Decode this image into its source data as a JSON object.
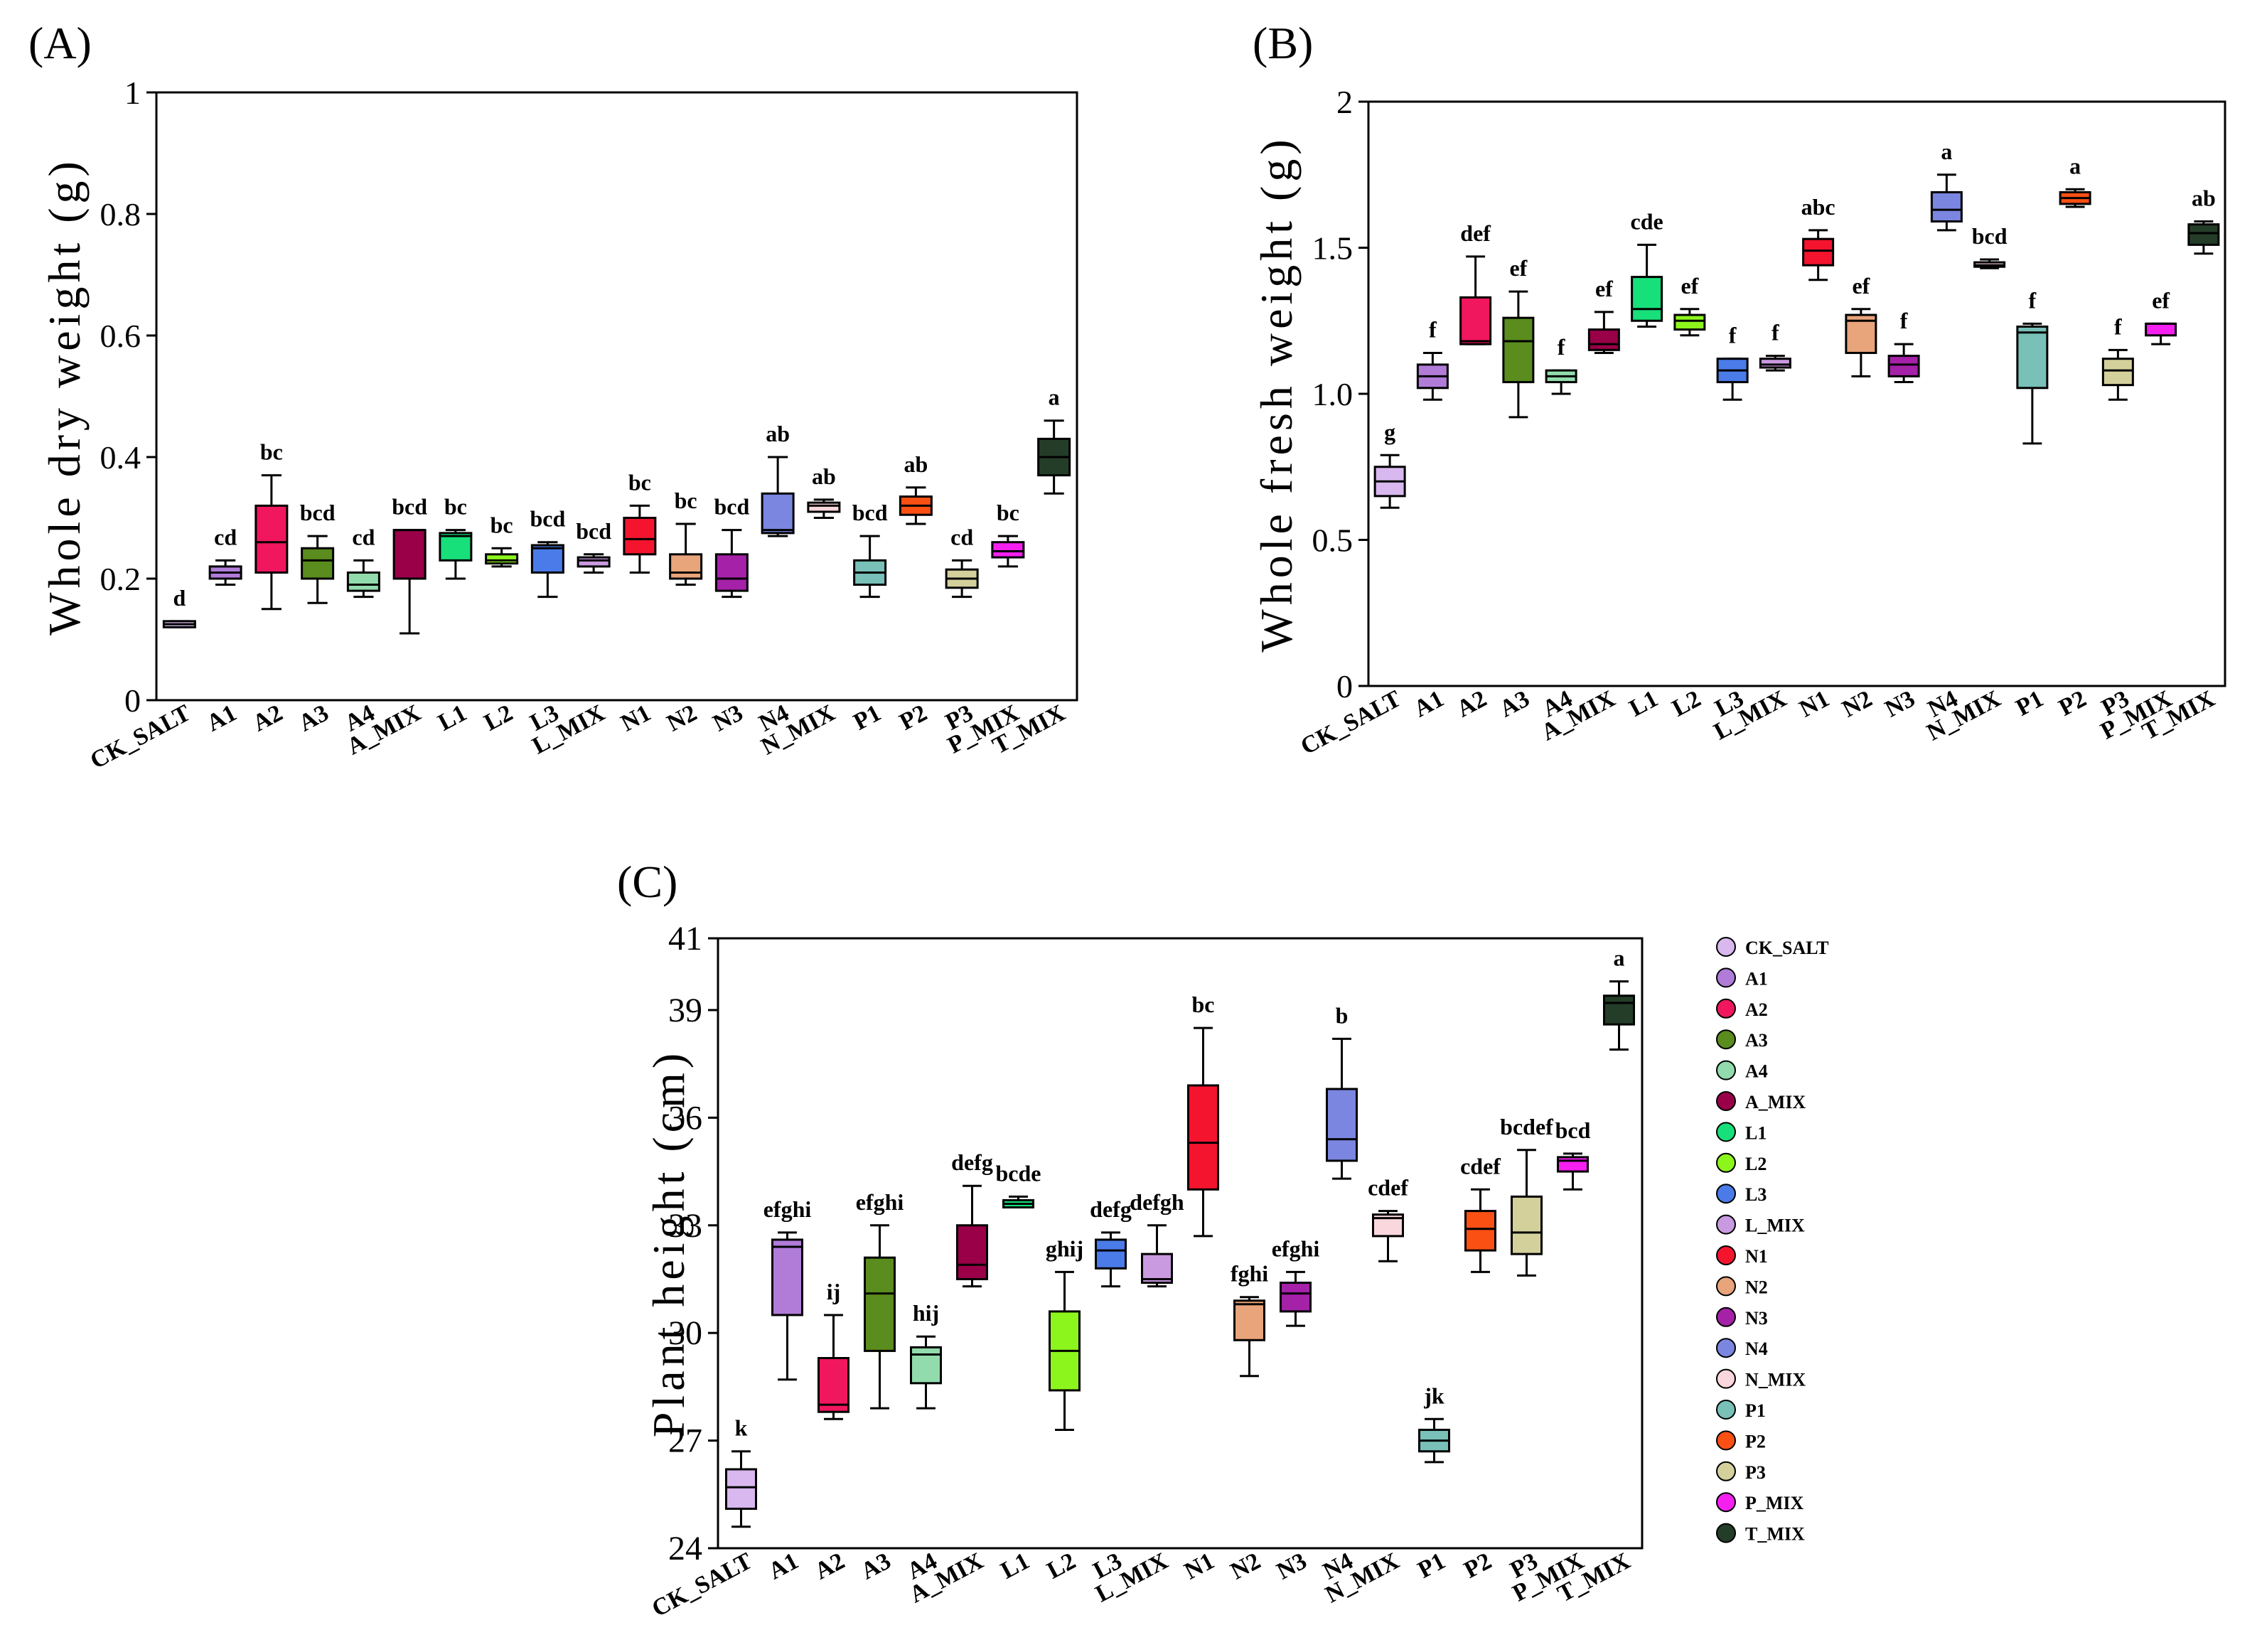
{
  "categories": [
    "CK_SALT",
    "A1",
    "A2",
    "A3",
    "A4",
    "A_MIX",
    "L1",
    "L2",
    "L3",
    "L_MIX",
    "N1",
    "N2",
    "N3",
    "N4",
    "N_MIX",
    "P1",
    "P2",
    "P3",
    "P_MIX",
    "T_MIX"
  ],
  "colors": [
    "#d8b8ee",
    "#b07cd8",
    "#f0175e",
    "#5a8c1e",
    "#92dbac",
    "#990048",
    "#17e07a",
    "#8cf51c",
    "#4a7be8",
    "#c99ae0",
    "#f5142e",
    "#e8a47a",
    "#a521a8",
    "#7a86e0",
    "#fad7dc",
    "#78c0b8",
    "#fa5014",
    "#d4d09c",
    "#f520f0",
    "#243d28"
  ],
  "legend": {
    "entries": [
      "CK_SALT",
      "A1",
      "A2",
      "A3",
      "A4",
      "A_MIX",
      "L1",
      "L2",
      "L3",
      "L_MIX",
      "N1",
      "N2",
      "N3",
      "N4",
      "N_MIX",
      "P1",
      "P2",
      "P3",
      "P_MIX",
      "T_MIX"
    ]
  },
  "chart_data": [
    {
      "type": "box",
      "panel": "(A)",
      "ylabel": "Whole dry weight (g)",
      "ylim": [
        0,
        1
      ],
      "yticks": [
        "0",
        "0.2",
        "0.4",
        "0.6",
        "0.8",
        "1"
      ],
      "tick_values": [
        0,
        0.2,
        0.4,
        0.6,
        0.8,
        1
      ],
      "letters": [
        "d",
        "cd",
        "bc",
        "bcd",
        "cd",
        "bcd",
        "bc",
        "bc",
        "bcd",
        "bcd",
        "bc",
        "bc",
        "bcd",
        "ab",
        "ab",
        "bcd",
        "ab",
        "cd",
        "bc",
        "a"
      ],
      "boxes": [
        {
          "min": 0.12,
          "q1": 0.12,
          "median": 0.125,
          "q3": 0.13,
          "max": 0.13
        },
        {
          "min": 0.19,
          "q1": 0.2,
          "median": 0.21,
          "q3": 0.22,
          "max": 0.23
        },
        {
          "min": 0.15,
          "q1": 0.21,
          "median": 0.26,
          "q3": 0.32,
          "max": 0.37
        },
        {
          "min": 0.16,
          "q1": 0.2,
          "median": 0.23,
          "q3": 0.25,
          "max": 0.27
        },
        {
          "min": 0.17,
          "q1": 0.18,
          "median": 0.19,
          "q3": 0.21,
          "max": 0.23
        },
        {
          "min": 0.11,
          "q1": 0.2,
          "median": 0.28,
          "q3": 0.28,
          "max": 0.28
        },
        {
          "min": 0.2,
          "q1": 0.23,
          "median": 0.27,
          "q3": 0.275,
          "max": 0.28
        },
        {
          "min": 0.22,
          "q1": 0.225,
          "median": 0.23,
          "q3": 0.24,
          "max": 0.25
        },
        {
          "min": 0.17,
          "q1": 0.21,
          "median": 0.25,
          "q3": 0.255,
          "max": 0.26
        },
        {
          "min": 0.21,
          "q1": 0.22,
          "median": 0.23,
          "q3": 0.235,
          "max": 0.24
        },
        {
          "min": 0.21,
          "q1": 0.24,
          "median": 0.265,
          "q3": 0.3,
          "max": 0.32
        },
        {
          "min": 0.19,
          "q1": 0.2,
          "median": 0.21,
          "q3": 0.24,
          "max": 0.29
        },
        {
          "min": 0.17,
          "q1": 0.18,
          "median": 0.2,
          "q3": 0.24,
          "max": 0.28
        },
        {
          "min": 0.27,
          "q1": 0.275,
          "median": 0.28,
          "q3": 0.34,
          "max": 0.4
        },
        {
          "min": 0.3,
          "q1": 0.31,
          "median": 0.32,
          "q3": 0.325,
          "max": 0.33
        },
        {
          "min": 0.17,
          "q1": 0.19,
          "median": 0.21,
          "q3": 0.23,
          "max": 0.27
        },
        {
          "min": 0.29,
          "q1": 0.305,
          "median": 0.32,
          "q3": 0.335,
          "max": 0.35
        },
        {
          "min": 0.17,
          "q1": 0.185,
          "median": 0.2,
          "q3": 0.215,
          "max": 0.23
        },
        {
          "min": 0.22,
          "q1": 0.235,
          "median": 0.245,
          "q3": 0.26,
          "max": 0.27
        },
        {
          "min": 0.34,
          "q1": 0.37,
          "median": 0.4,
          "q3": 0.43,
          "max": 0.46
        }
      ]
    },
    {
      "type": "box",
      "panel": "(B)",
      "ylabel": "Whole fresh weight (g)",
      "ylim": [
        0,
        2
      ],
      "yticks": [
        "0",
        "0.5",
        "1.0",
        "1.5",
        "2"
      ],
      "tick_values": [
        0,
        0.5,
        1.0,
        1.5,
        2
      ],
      "letters": [
        "g",
        "f",
        "def",
        "ef",
        "f",
        "ef",
        "cde",
        "ef",
        "f",
        "f",
        "abc",
        "ef",
        "f",
        "a",
        "bcd",
        "f",
        "a",
        "f",
        "ef",
        "ab"
      ],
      "boxes": [
        {
          "min": 0.61,
          "q1": 0.65,
          "median": 0.7,
          "q3": 0.75,
          "max": 0.79
        },
        {
          "min": 0.98,
          "q1": 1.02,
          "median": 1.06,
          "q3": 1.1,
          "max": 1.14
        },
        {
          "min": 1.17,
          "q1": 1.17,
          "median": 1.18,
          "q3": 1.33,
          "max": 1.47
        },
        {
          "min": 0.92,
          "q1": 1.04,
          "median": 1.18,
          "q3": 1.26,
          "max": 1.35
        },
        {
          "min": 1.0,
          "q1": 1.04,
          "median": 1.06,
          "q3": 1.08,
          "max": 1.08
        },
        {
          "min": 1.14,
          "q1": 1.15,
          "median": 1.17,
          "q3": 1.22,
          "max": 1.28
        },
        {
          "min": 1.23,
          "q1": 1.25,
          "median": 1.29,
          "q3": 1.4,
          "max": 1.51
        },
        {
          "min": 1.2,
          "q1": 1.22,
          "median": 1.25,
          "q3": 1.27,
          "max": 1.29
        },
        {
          "min": 0.98,
          "q1": 1.04,
          "median": 1.08,
          "q3": 1.12,
          "max": 1.12
        },
        {
          "min": 1.08,
          "q1": 1.09,
          "median": 1.1,
          "q3": 1.12,
          "max": 1.13
        },
        {
          "min": 1.39,
          "q1": 1.44,
          "median": 1.49,
          "q3": 1.53,
          "max": 1.56
        },
        {
          "min": 1.06,
          "q1": 1.14,
          "median": 1.25,
          "q3": 1.27,
          "max": 1.29
        },
        {
          "min": 1.04,
          "q1": 1.06,
          "median": 1.1,
          "q3": 1.13,
          "max": 1.17
        },
        {
          "min": 1.56,
          "q1": 1.59,
          "median": 1.63,
          "q3": 1.69,
          "max": 1.75
        },
        {
          "min": 1.43,
          "q1": 1.435,
          "median": 1.44,
          "q3": 1.45,
          "max": 1.46
        },
        {
          "min": 0.83,
          "q1": 1.02,
          "median": 1.21,
          "q3": 1.23,
          "max": 1.24
        },
        {
          "min": 1.64,
          "q1": 1.65,
          "median": 1.67,
          "q3": 1.69,
          "max": 1.7
        },
        {
          "min": 0.98,
          "q1": 1.03,
          "median": 1.08,
          "q3": 1.12,
          "max": 1.15
        },
        {
          "min": 1.17,
          "q1": 1.2,
          "median": 1.24,
          "q3": 1.24,
          "max": 1.24
        },
        {
          "min": 1.48,
          "q1": 1.51,
          "median": 1.55,
          "q3": 1.58,
          "max": 1.59
        }
      ]
    },
    {
      "type": "box",
      "panel": "(C)",
      "ylabel": "Plant height (cm)",
      "ylim": [
        24,
        41
      ],
      "yticks": [
        "24",
        "27",
        "30",
        "33",
        "36",
        "39",
        "41"
      ],
      "tick_values": [
        24,
        27,
        30,
        33,
        36,
        39,
        41
      ],
      "letters": [
        "k",
        "efghi",
        "ij",
        "efghi",
        "hij",
        "defg",
        "bcde",
        "ghij",
        "defg",
        "defgh",
        "bc",
        "fghi",
        "efghi",
        "b",
        "cdef",
        "jk",
        "cdef",
        "bcdef",
        "bcd",
        "a"
      ],
      "boxes": [
        {
          "min": 24.6,
          "q1": 25.1,
          "median": 25.7,
          "q3": 26.2,
          "max": 26.7
        },
        {
          "min": 28.7,
          "q1": 30.5,
          "median": 32.4,
          "q3": 32.6,
          "max": 32.8
        },
        {
          "min": 27.6,
          "q1": 27.8,
          "median": 28.0,
          "q3": 29.3,
          "max": 30.5
        },
        {
          "min": 27.9,
          "q1": 29.5,
          "median": 31.1,
          "q3": 32.1,
          "max": 33.0
        },
        {
          "min": 27.9,
          "q1": 28.6,
          "median": 29.4,
          "q3": 29.6,
          "max": 29.9
        },
        {
          "min": 31.3,
          "q1": 31.5,
          "median": 31.9,
          "q3": 33.0,
          "max": 34.1
        },
        {
          "min": 33.5,
          "q1": 33.5,
          "median": 33.6,
          "q3": 33.7,
          "max": 33.8
        },
        {
          "min": 27.3,
          "q1": 28.4,
          "median": 29.5,
          "q3": 30.6,
          "max": 31.7
        },
        {
          "min": 31.3,
          "q1": 31.8,
          "median": 32.3,
          "q3": 32.6,
          "max": 32.8
        },
        {
          "min": 31.3,
          "q1": 31.4,
          "median": 31.5,
          "q3": 32.2,
          "max": 33.0
        },
        {
          "min": 32.7,
          "q1": 34.0,
          "median": 35.3,
          "q3": 36.9,
          "max": 38.5
        },
        {
          "min": 28.8,
          "q1": 29.8,
          "median": 30.8,
          "q3": 30.9,
          "max": 31.0
        },
        {
          "min": 30.2,
          "q1": 30.6,
          "median": 31.1,
          "q3": 31.4,
          "max": 31.7
        },
        {
          "min": 34.3,
          "q1": 34.8,
          "median": 35.4,
          "q3": 36.8,
          "max": 38.2
        },
        {
          "min": 32.0,
          "q1": 32.7,
          "median": 33.2,
          "q3": 33.3,
          "max": 33.4
        },
        {
          "min": 26.4,
          "q1": 26.7,
          "median": 27.0,
          "q3": 27.3,
          "max": 27.6
        },
        {
          "min": 31.7,
          "q1": 32.3,
          "median": 32.9,
          "q3": 33.4,
          "max": 34.0
        },
        {
          "min": 31.6,
          "q1": 32.2,
          "median": 32.8,
          "q3": 33.8,
          "max": 35.1
        },
        {
          "min": 34.0,
          "q1": 34.5,
          "median": 34.8,
          "q3": 34.9,
          "max": 35.0
        },
        {
          "min": 37.9,
          "q1": 38.6,
          "median": 39.2,
          "q3": 39.4,
          "max": 39.8
        }
      ]
    }
  ]
}
